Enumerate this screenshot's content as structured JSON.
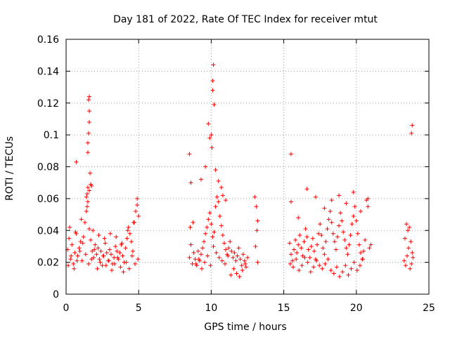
{
  "chart_data": {
    "type": "scatter",
    "title": "Day 181 of 2022, Rate Of TEC Index for receiver mtut",
    "xlabel": "GPS time / hours",
    "ylabel": "ROTI / TECUs",
    "xlim": [
      0,
      25
    ],
    "ylim": [
      0,
      0.16
    ],
    "xticks": [
      "0",
      "5",
      "10",
      "15",
      "20",
      "25"
    ],
    "yticks": [
      "0",
      "0.02",
      "0.04",
      "0.06",
      "0.08",
      "0.1",
      "0.12",
      "0.14",
      "0.16"
    ],
    "grid": true,
    "marker": "+",
    "color": "#ff0000",
    "series": [
      {
        "x": [
          0.1,
          0.2,
          0.3,
          0.4,
          0.5,
          0.6,
          0.7,
          0.8,
          0.9,
          1.0,
          1.1,
          1.2,
          1.3,
          1.4,
          1.5,
          1.6,
          1.7,
          1.8,
          1.9,
          2.0,
          2.1,
          2.2,
          2.3,
          2.4,
          2.5,
          2.6,
          2.7,
          2.8,
          2.9,
          3.0,
          3.1,
          3.2,
          3.3,
          3.4,
          3.5,
          3.6,
          3.7,
          3.8,
          3.9,
          4.0,
          4.1,
          4.2,
          4.3,
          4.4,
          4.5,
          4.6,
          4.7,
          4.8,
          4.9,
          5.0,
          0.15,
          0.35,
          0.55,
          0.75,
          0.95,
          1.15,
          1.35,
          1.55,
          1.75,
          1.95,
          2.15,
          2.35,
          2.55,
          2.75,
          2.95,
          3.15,
          3.35,
          3.55,
          3.75,
          3.95,
          4.15,
          4.35,
          4.55,
          4.75,
          4.95,
          0.25,
          0.65,
          1.05,
          1.45,
          1.85,
          2.25,
          2.65,
          3.05,
          3.45,
          3.85,
          4.25,
          4.65,
          0.7,
          1.4,
          1.5,
          1.5,
          1.55,
          1.6,
          1.6,
          1.55,
          1.6,
          1.65,
          1.7,
          1.6,
          1.5,
          1.45,
          1.75,
          4.9,
          8.5,
          8.6,
          8.7,
          8.8,
          8.9,
          9.0,
          9.1,
          9.2,
          9.3,
          9.4,
          9.5,
          9.6,
          9.7,
          9.8,
          9.9,
          10.0,
          10.1,
          10.2,
          10.3,
          10.4,
          10.5,
          10.6,
          10.7,
          10.8,
          10.9,
          11.0,
          11.1,
          11.2,
          11.3,
          11.4,
          11.5,
          11.6,
          11.7,
          11.8,
          11.9,
          12.0,
          12.1,
          12.2,
          12.3,
          12.4,
          12.5,
          8.55,
          8.75,
          8.95,
          9.15,
          9.35,
          9.55,
          9.75,
          9.95,
          10.15,
          10.35,
          10.55,
          10.75,
          10.95,
          11.15,
          11.35,
          11.55,
          11.75,
          11.95,
          12.15,
          12.35,
          8.5,
          8.6,
          9.3,
          9.6,
          9.8,
          9.9,
          10.0,
          10.1,
          10.1,
          10.15,
          10.2,
          10.05,
          10.3,
          10.5,
          10.7,
          10.8,
          11.0,
          13.0,
          13.1,
          13.2,
          13.15,
          13.05,
          13.2,
          15.4,
          15.5,
          15.6,
          15.7,
          15.8,
          15.9,
          16.0,
          16.1,
          16.2,
          16.3,
          16.4,
          16.5,
          16.6,
          16.7,
          16.8,
          16.9,
          17.0,
          17.1,
          17.2,
          17.3,
          17.4,
          17.5,
          17.6,
          17.7,
          17.8,
          17.9,
          18.0,
          18.1,
          18.2,
          18.3,
          18.4,
          18.5,
          18.6,
          18.7,
          18.8,
          18.9,
          19.0,
          19.1,
          19.2,
          19.3,
          19.4,
          19.5,
          19.6,
          19.7,
          19.8,
          19.9,
          20.0,
          20.1,
          20.2,
          20.3,
          20.4,
          20.5,
          20.6,
          20.7,
          20.8,
          20.9,
          21.0,
          15.45,
          15.65,
          15.85,
          16.05,
          16.25,
          16.45,
          16.65,
          16.85,
          17.05,
          17.25,
          17.45,
          17.65,
          17.85,
          18.05,
          18.25,
          18.45,
          18.65,
          18.85,
          19.05,
          19.25,
          19.45,
          19.65,
          19.85,
          20.05,
          20.25,
          20.45,
          15.5,
          16.0,
          16.6,
          17.2,
          17.8,
          18.3,
          18.8,
          19.3,
          19.8,
          20.3,
          20.8,
          15.5,
          23.3,
          23.4,
          23.5,
          23.6,
          23.7,
          23.8,
          23.9,
          23.35,
          23.55,
          23.75,
          23.85,
          23.45,
          23.65,
          23.8,
          23.85
        ],
        "y": [
          0.028,
          0.035,
          0.022,
          0.031,
          0.019,
          0.026,
          0.038,
          0.024,
          0.029,
          0.033,
          0.021,
          0.036,
          0.045,
          0.052,
          0.058,
          0.041,
          0.034,
          0.027,
          0.023,
          0.031,
          0.025,
          0.029,
          0.022,
          0.027,
          0.018,
          0.024,
          0.032,
          0.026,
          0.021,
          0.028,
          0.025,
          0.019,
          0.023,
          0.03,
          0.027,
          0.022,
          0.026,
          0.031,
          0.024,
          0.02,
          0.029,
          0.035,
          0.042,
          0.038,
          0.033,
          0.027,
          0.045,
          0.052,
          0.056,
          0.049,
          0.018,
          0.024,
          0.016,
          0.021,
          0.027,
          0.032,
          0.025,
          0.019,
          0.022,
          0.028,
          0.016,
          0.02,
          0.024,
          0.018,
          0.021,
          0.015,
          0.019,
          0.023,
          0.017,
          0.014,
          0.02,
          0.016,
          0.024,
          0.019,
          0.022,
          0.042,
          0.039,
          0.047,
          0.055,
          0.04,
          0.037,
          0.035,
          0.038,
          0.036,
          0.032,
          0.04,
          0.045,
          0.083,
          0.061,
          0.089,
          0.095,
          0.101,
          0.115,
          0.108,
          0.122,
          0.124,
          0.076,
          0.069,
          0.065,
          0.067,
          0.063,
          0.068,
          0.06,
          0.023,
          0.031,
          0.019,
          0.026,
          0.022,
          0.018,
          0.027,
          0.021,
          0.025,
          0.029,
          0.033,
          0.038,
          0.042,
          0.047,
          0.051,
          0.044,
          0.036,
          0.039,
          0.055,
          0.061,
          0.058,
          0.049,
          0.043,
          0.037,
          0.032,
          0.028,
          0.025,
          0.029,
          0.033,
          0.027,
          0.023,
          0.026,
          0.021,
          0.024,
          0.029,
          0.022,
          0.018,
          0.025,
          0.021,
          0.017,
          0.023,
          0.042,
          0.045,
          0.019,
          0.022,
          0.016,
          0.02,
          0.024,
          0.018,
          0.03,
          0.026,
          0.023,
          0.021,
          0.019,
          0.024,
          0.012,
          0.016,
          0.013,
          0.011,
          0.015,
          0.019,
          0.088,
          0.07,
          0.072,
          0.08,
          0.107,
          0.098,
          0.1,
          0.128,
          0.134,
          0.144,
          0.119,
          0.092,
          0.078,
          0.071,
          0.067,
          0.062,
          0.059,
          0.061,
          0.055,
          0.046,
          0.04,
          0.03,
          0.02,
          0.032,
          0.025,
          0.021,
          0.028,
          0.034,
          0.026,
          0.031,
          0.037,
          0.029,
          0.024,
          0.033,
          0.041,
          0.036,
          0.028,
          0.023,
          0.03,
          0.035,
          0.027,
          0.022,
          0.031,
          0.038,
          0.044,
          0.037,
          0.029,
          0.025,
          0.033,
          0.041,
          0.047,
          0.052,
          0.045,
          0.038,
          0.033,
          0.028,
          0.036,
          0.043,
          0.051,
          0.046,
          0.039,
          0.034,
          0.029,
          0.025,
          0.031,
          0.037,
          0.044,
          0.049,
          0.055,
          0.046,
          0.038,
          0.031,
          0.026,
          0.022,
          0.027,
          0.034,
          0.059,
          0.055,
          0.029,
          0.031,
          0.019,
          0.017,
          0.022,
          0.015,
          0.018,
          0.023,
          0.02,
          0.014,
          0.017,
          0.021,
          0.018,
          0.016,
          0.019,
          0.022,
          0.015,
          0.013,
          0.017,
          0.011,
          0.014,
          0.018,
          0.012,
          0.016,
          0.02,
          0.015,
          0.018,
          0.022,
          0.058,
          0.048,
          0.066,
          0.061,
          0.054,
          0.059,
          0.062,
          0.057,
          0.064,
          0.052,
          0.06,
          0.088,
          0.021,
          0.018,
          0.024,
          0.029,
          0.016,
          0.019,
          0.023,
          0.035,
          0.04,
          0.033,
          0.026,
          0.044,
          0.042,
          0.101,
          0.106
        ]
      }
    ]
  }
}
